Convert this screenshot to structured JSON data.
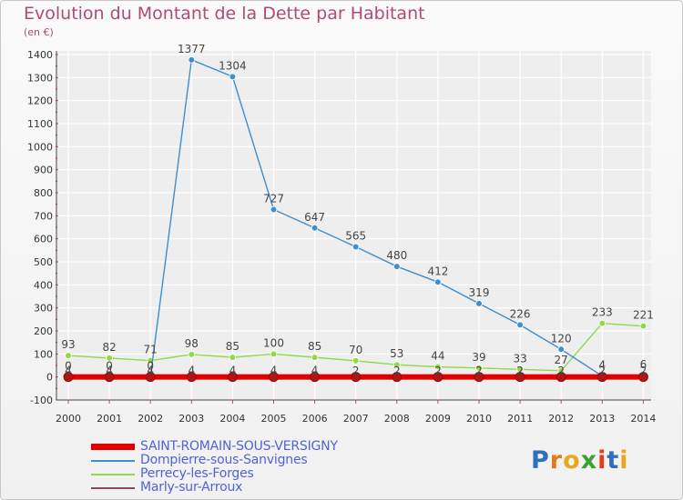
{
  "chart_data": {
    "type": "line",
    "title": "Evolution du Montant de la Dette par Habitant",
    "ylabel": "(en €)",
    "xlabel": "",
    "ylim": [
      -100,
      1400
    ],
    "yticks": [
      -100,
      0,
      100,
      200,
      300,
      400,
      500,
      600,
      700,
      800,
      900,
      1000,
      1100,
      1200,
      1300,
      1400
    ],
    "categories": [
      "2000",
      "2001",
      "2002",
      "2003",
      "2004",
      "2005",
      "2006",
      "2007",
      "2008",
      "2009",
      "2010",
      "2011",
      "2012",
      "2013",
      "2014"
    ],
    "grid": true,
    "series": [
      {
        "name": "SAINT-ROMAIN-SOUS-VERSIGNY",
        "color": "#e00000",
        "values": [
          0,
          0,
          0,
          0,
          0,
          0,
          0,
          0,
          0,
          0,
          0,
          0,
          0,
          0,
          0
        ],
        "labels": [
          "0",
          "0",
          "0",
          "0",
          "0",
          "0",
          "0",
          "0",
          "0",
          "0",
          "0",
          "0",
          "0",
          "0",
          "0"
        ]
      },
      {
        "name": "Dompierre-sous-Sanvignes",
        "color": "#3d8fcf",
        "values": [
          0,
          0,
          0,
          1377,
          1304,
          727,
          647,
          565,
          480,
          412,
          319,
          226,
          120,
          4,
          6
        ],
        "labels": [
          "0",
          "0",
          "0",
          "1377",
          "1304",
          "727",
          "647",
          "565",
          "480",
          "412",
          "319",
          "226",
          "120",
          "4",
          "6"
        ]
      },
      {
        "name": "Perrecy-les-Forges",
        "color": "#8fd94a",
        "values": [
          93,
          82,
          71,
          98,
          85,
          100,
          85,
          70,
          53,
          44,
          39,
          33,
          27,
          233,
          221
        ],
        "labels": [
          "93",
          "82",
          "71",
          "98",
          "85",
          "100",
          "85",
          "70",
          "53",
          "44",
          "39",
          "33",
          "27",
          "233",
          "221"
        ]
      },
      {
        "name": "Marly-sur-Arroux",
        "color": "#8a4a58",
        "values": [
          4,
          4,
          4,
          4,
          4,
          4,
          4,
          2,
          2,
          2,
          2,
          2,
          2,
          2,
          2
        ],
        "labels": [
          "4",
          "4",
          "4",
          "4",
          "4",
          "4",
          "4",
          "2",
          "2",
          "2",
          "2",
          "2",
          "2",
          "2",
          "2"
        ]
      }
    ]
  },
  "legend": {
    "items": [
      {
        "label": "SAINT-ROMAIN-SOUS-VERSIGNY",
        "color": "#e00000"
      },
      {
        "label": "Dompierre-sous-Sanvignes",
        "color": "#3d8fcf"
      },
      {
        "label": "Perrecy-les-Forges",
        "color": "#8fd94a"
      },
      {
        "label": "Marly-sur-Arroux",
        "color": "#8a4a58"
      }
    ]
  },
  "logo": {
    "letters": [
      "P",
      "r",
      "o",
      "x",
      "i",
      "t",
      "i"
    ],
    "colors": [
      "#2e6fc0",
      "#e07b1a",
      "#e8a81c",
      "#3da235",
      "#e0401a",
      "#2e6fc0",
      "#e8a81c"
    ]
  }
}
